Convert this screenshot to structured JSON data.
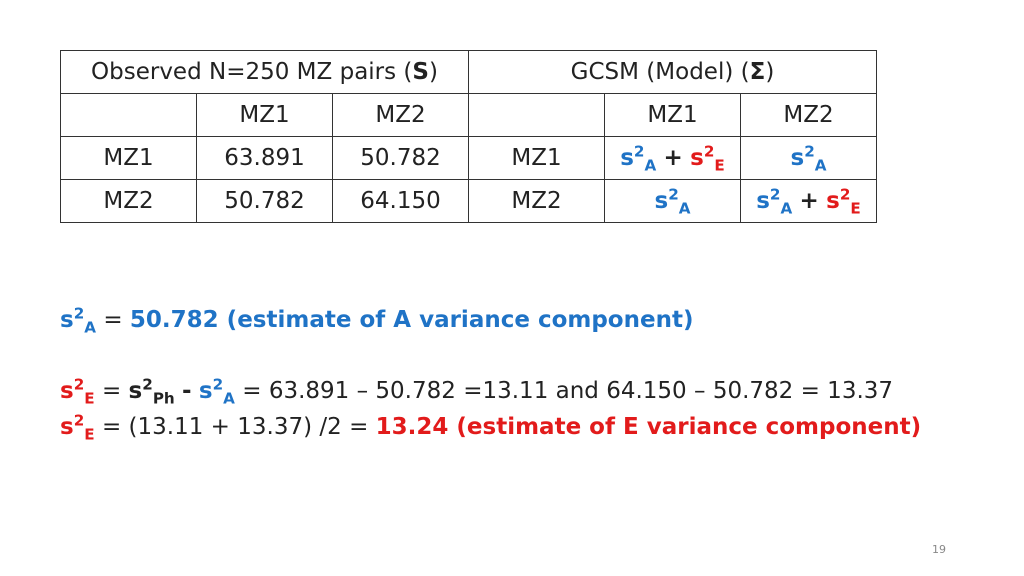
{
  "table": {
    "observed_title": "Observed N=250 MZ pairs (",
    "observed_symbol": "S",
    "observed_close": ")",
    "model_title": "GCSM (Model) (",
    "model_symbol": "Σ",
    "model_close": ")",
    "col_mz1": "MZ1",
    "col_mz2": "MZ2",
    "row_mz1": "MZ1",
    "row_mz2": "MZ2",
    "obs_r1c1": "63.891",
    "obs_r1c2": "50.782",
    "obs_r2c1": "50.782",
    "obs_r2c2": "64.150"
  },
  "symbols": {
    "s": "s",
    "sq": "2",
    "A": "A",
    "E": "E",
    "Ph": "Ph",
    "plus": "+",
    "minus": "-",
    "eq": "="
  },
  "lines": {
    "l1_value": "50.782 (estimate of A variance component)",
    "l2_rest": "= 63.891 – 50.782 =13.11 and 64.150 – 50.782 = 13.37",
    "l3_mid": "= (13.11 + 13.37) /2 =",
    "l3_result": "13.24 (estimate of E variance component)"
  },
  "page_number": "19",
  "colors": {
    "blue": "#1f73c6",
    "red": "#e21b1b"
  }
}
